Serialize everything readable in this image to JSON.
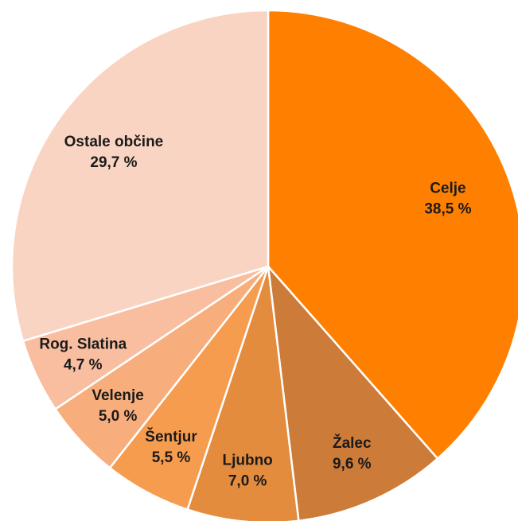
{
  "chart_data": {
    "type": "pie",
    "categories": [
      "Celje",
      "Žalec",
      "Ljubno",
      "Šentjur",
      "Velenje",
      "Rog. Slatina",
      "Ostale občine"
    ],
    "values": [
      38.5,
      9.6,
      7.0,
      5.5,
      5.0,
      4.7,
      29.7
    ],
    "value_labels": [
      "38,5 %",
      "9,6 %",
      "7,0 %",
      "5,5 %",
      "5,0 %",
      "4,7 %",
      "29,7 %"
    ],
    "colors": [
      "#ff8000",
      "#cd7b38",
      "#e48c3e",
      "#f59c4e",
      "#f8ae7c",
      "#f9bea0",
      "#fad4c2"
    ]
  }
}
